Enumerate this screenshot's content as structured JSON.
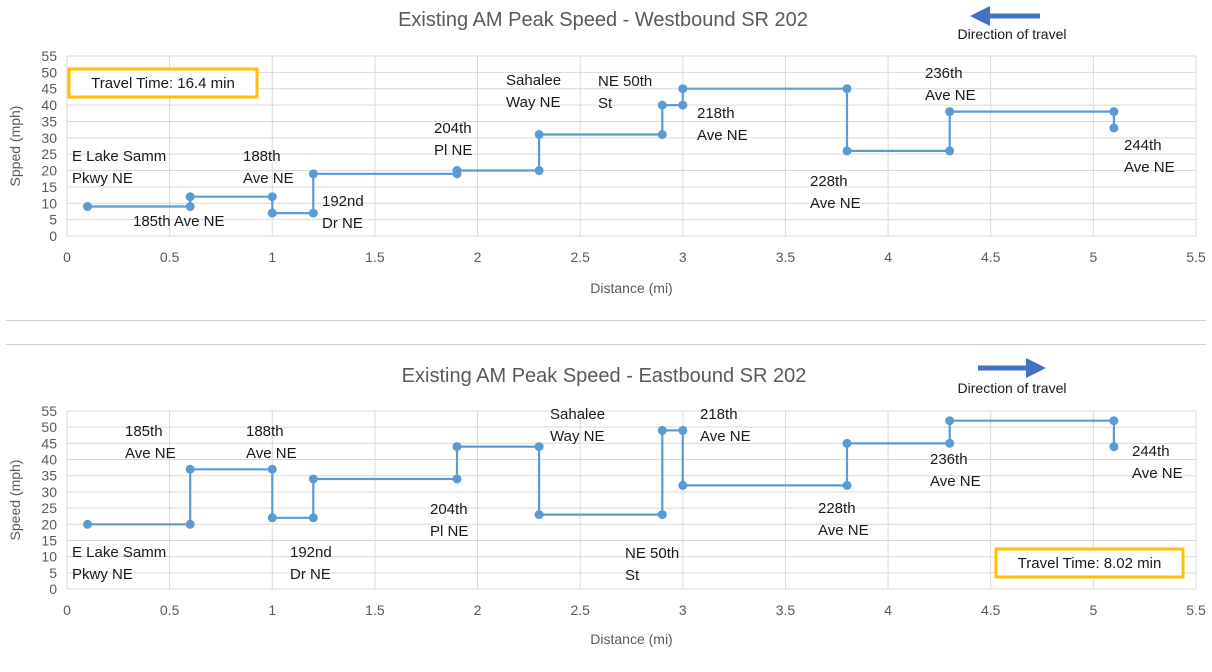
{
  "chart_data": [
    {
      "type": "line",
      "title": "Existing AM Peak Speed - Westbound SR 202",
      "xlabel": "Distance (mi)",
      "ylabel": "Spped (mph)",
      "xlim": [
        0,
        5.5
      ],
      "ylim": [
        0,
        55
      ],
      "xticks": [
        "0",
        "0.5",
        "1",
        "1.5",
        "2",
        "2.5",
        "3",
        "3.5",
        "4",
        "4.5",
        "5",
        "5.5"
      ],
      "yticks": [
        "0",
        "5",
        "10",
        "15",
        "20",
        "25",
        "30",
        "35",
        "40",
        "45",
        "50",
        "55"
      ],
      "grid": true,
      "direction_label": "Direction of travel",
      "direction": "west",
      "travel_time": "Travel Time: 16.4 min",
      "series": [
        {
          "color": "#5b9bd5",
          "points": [
            [
              0.1,
              9
            ],
            [
              0.6,
              9
            ],
            [
              0.6,
              12
            ],
            [
              1.0,
              12
            ],
            [
              1.0,
              7
            ],
            [
              1.2,
              7
            ],
            [
              1.2,
              19
            ],
            [
              1.9,
              19
            ],
            [
              1.9,
              20
            ],
            [
              2.3,
              20
            ],
            [
              2.3,
              31
            ],
            [
              2.9,
              31
            ],
            [
              2.9,
              40
            ],
            [
              3.0,
              40
            ],
            [
              3.0,
              45
            ],
            [
              3.8,
              45
            ],
            [
              3.8,
              26
            ],
            [
              4.3,
              26
            ],
            [
              4.3,
              38
            ],
            [
              5.1,
              38
            ],
            [
              5.1,
              33
            ]
          ]
        }
      ],
      "annotations": [
        {
          "lines": [
            "E Lake Samm",
            "Pkwy NE"
          ]
        },
        {
          "lines": [
            "185th Ave NE"
          ]
        },
        {
          "lines": [
            "188th",
            "Ave NE"
          ]
        },
        {
          "lines": [
            "192nd",
            "Dr NE"
          ]
        },
        {
          "lines": [
            "204th",
            "Pl NE"
          ]
        },
        {
          "lines": [
            "Sahalee",
            "Way NE"
          ]
        },
        {
          "lines": [
            "NE 50th",
            "St"
          ]
        },
        {
          "lines": [
            "218th",
            "Ave NE"
          ]
        },
        {
          "lines": [
            "228th",
            "Ave NE"
          ]
        },
        {
          "lines": [
            "236th",
            "Ave NE"
          ]
        },
        {
          "lines": [
            "244th",
            "Ave NE"
          ]
        }
      ]
    },
    {
      "type": "line",
      "title": "Existing AM Peak Speed - Eastbound SR 202",
      "xlabel": "Distance (mi)",
      "ylabel": "Speed (mph)",
      "xlim": [
        0,
        5.5
      ],
      "ylim": [
        0,
        55
      ],
      "xticks": [
        "0",
        "0.5",
        "1",
        "1.5",
        "2",
        "2.5",
        "3",
        "3.5",
        "4",
        "4.5",
        "5",
        "5.5"
      ],
      "yticks": [
        "0",
        "5",
        "10",
        "15",
        "20",
        "25",
        "30",
        "35",
        "40",
        "45",
        "50",
        "55"
      ],
      "grid": true,
      "direction_label": "Direction of travel",
      "direction": "east",
      "travel_time": "Travel Time: 8.02 min",
      "series": [
        {
          "color": "#5b9bd5",
          "points": [
            [
              0.1,
              20
            ],
            [
              0.6,
              20
            ],
            [
              0.6,
              37
            ],
            [
              1.0,
              37
            ],
            [
              1.0,
              22
            ],
            [
              1.2,
              22
            ],
            [
              1.2,
              34
            ],
            [
              1.9,
              34
            ],
            [
              1.9,
              44
            ],
            [
              2.3,
              44
            ],
            [
              2.3,
              23
            ],
            [
              2.9,
              23
            ],
            [
              2.9,
              49
            ],
            [
              3.0,
              49
            ],
            [
              3.0,
              32
            ],
            [
              3.8,
              32
            ],
            [
              3.8,
              45
            ],
            [
              4.3,
              45
            ],
            [
              4.3,
              52
            ],
            [
              5.1,
              52
            ],
            [
              5.1,
              44
            ]
          ]
        }
      ],
      "annotations": [
        {
          "lines": [
            "185th",
            "Ave NE"
          ]
        },
        {
          "lines": [
            "188th",
            "Ave NE"
          ]
        },
        {
          "lines": [
            "E Lake Samm",
            "Pkwy NE"
          ]
        },
        {
          "lines": [
            "192nd",
            "Dr NE"
          ]
        },
        {
          "lines": [
            "204th",
            "Pl NE"
          ]
        },
        {
          "lines": [
            "Sahalee",
            "Way NE"
          ]
        },
        {
          "lines": [
            "NE 50th",
            "St"
          ]
        },
        {
          "lines": [
            "218th",
            "Ave NE"
          ]
        },
        {
          "lines": [
            "228th",
            "Ave NE"
          ]
        },
        {
          "lines": [
            "236th",
            "Ave NE"
          ]
        },
        {
          "lines": [
            "244th",
            "Ave NE"
          ]
        }
      ]
    }
  ]
}
